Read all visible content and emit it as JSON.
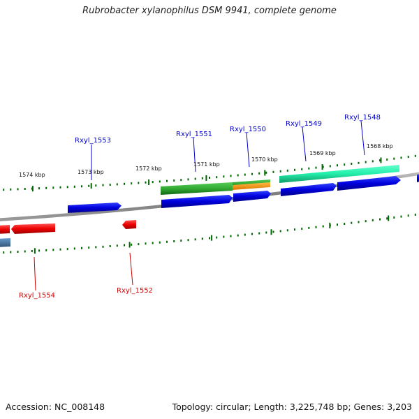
{
  "title": "Rubrobacter xylanophilus DSM 9941, complete genome",
  "footer": {
    "accession_label": "Accession:",
    "accession": "NC_008148",
    "topology_label": "Topology:",
    "topology": "circular",
    "length_label": "Length:",
    "length": "3,225,748 bp",
    "genes_label": "Genes:",
    "genes": "3,203"
  },
  "scale_ticks": [
    {
      "label": "1574 kbp",
      "kbp": 1574
    },
    {
      "label": "1573 kbp",
      "kbp": 1573
    },
    {
      "label": "1572 kbp",
      "kbp": 1572
    },
    {
      "label": "1571 kbp",
      "kbp": 1571
    },
    {
      "label": "1570 kbp",
      "kbp": 1570
    },
    {
      "label": "1569 kbp",
      "kbp": 1569
    },
    {
      "label": "1568 kbp",
      "kbp": 1568
    }
  ],
  "gene_labels": {
    "forward": [
      "Rxyl_1553",
      "Rxyl_1551",
      "Rxyl_1550",
      "Rxyl_1549",
      "Rxyl_1548"
    ],
    "reverse": [
      "Rxyl_1554",
      "Rxyl_1552"
    ]
  },
  "colors": {
    "forward_cds": "#0000dd",
    "reverse_cds": "#ee0000",
    "gene_feature_green": "#33bb33",
    "rna_feature_teal": "#22eeaa",
    "misc_feature_orange": "#ff9900",
    "other_blue": "#4477aa",
    "forward_label": "#0000cc",
    "reverse_label": "#cc0000",
    "tick_green": "#006600",
    "backbone": "#888888"
  }
}
